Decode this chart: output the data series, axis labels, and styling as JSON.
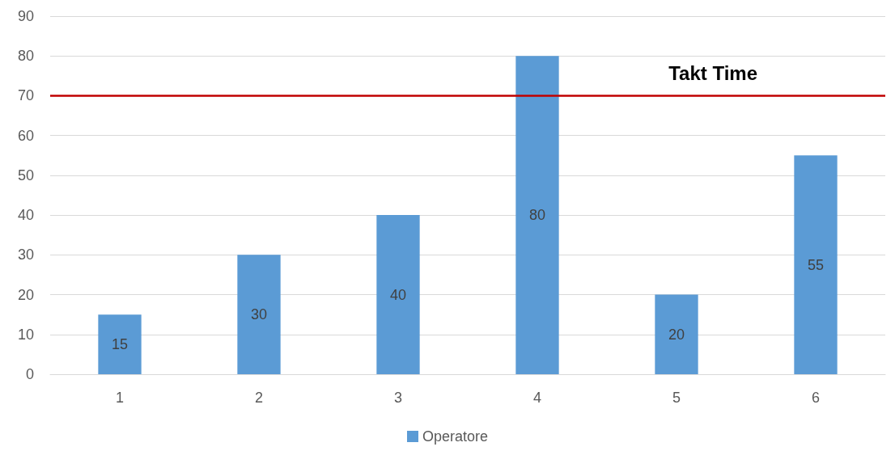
{
  "chart_data": {
    "type": "bar",
    "categories": [
      "1",
      "2",
      "3",
      "4",
      "5",
      "6"
    ],
    "series": [
      {
        "name": "Operatore",
        "color": "#5b9bd5",
        "values": [
          15,
          30,
          40,
          80,
          20,
          55
        ]
      }
    ],
    "ylim": [
      0,
      90
    ],
    "yticks": [
      0,
      10,
      20,
      30,
      40,
      50,
      60,
      70,
      80,
      90
    ],
    "grid": "y",
    "legend": "bottom",
    "data_labels": true,
    "ref_lines": [
      {
        "axis": "y",
        "value": 70,
        "label": "Takt Time",
        "color": "#c00000"
      }
    ]
  }
}
